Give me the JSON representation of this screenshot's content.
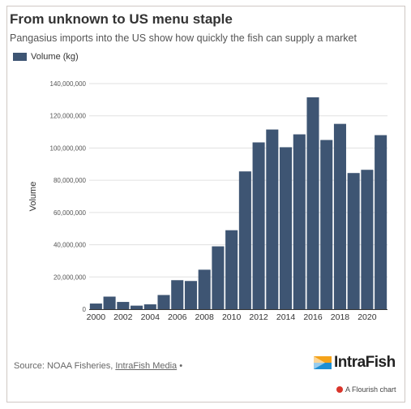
{
  "header": {
    "title": "From unknown to US menu staple",
    "subtitle": "Pangasius imports into the US show how quickly the fish can supply a market"
  },
  "legend": {
    "label": "Volume (kg)"
  },
  "colors": {
    "bar": "#3e5573",
    "grid": "#e0e0e0",
    "axis": "#333333",
    "logo_orange": "#f5a31a",
    "logo_blue": "#1e8fd4"
  },
  "chart_data": {
    "type": "bar",
    "categories": [
      "2000",
      "2001",
      "2002",
      "2003",
      "2004",
      "2005",
      "2006",
      "2007",
      "2008",
      "2009",
      "2010",
      "2011",
      "2012",
      "2013",
      "2014",
      "2015",
      "2016",
      "2017",
      "2018",
      "2019",
      "2020",
      "2021"
    ],
    "series": [
      {
        "name": "Volume (kg)",
        "values": [
          3500000,
          7800000,
          4500000,
          2200000,
          3000000,
          8800000,
          18000000,
          17500000,
          24500000,
          39000000,
          49000000,
          85500000,
          103500000,
          111500000,
          100500000,
          108500000,
          131500000,
          105000000,
          115000000,
          84500000,
          86500000,
          108000000
        ]
      }
    ],
    "xlabel": "",
    "ylabel": "Volume",
    "ylim": [
      0,
      140000000
    ],
    "yticks": [
      "0",
      "20,000,000",
      "40,000,000",
      "60,000,000",
      "80,000,000",
      "100,000,000",
      "120,000,000",
      "140,000,000"
    ],
    "xtick_labels": [
      "2000",
      "2002",
      "2004",
      "2006",
      "2008",
      "2010",
      "2012",
      "2014",
      "2016",
      "2018",
      "2020"
    ],
    "grid": true,
    "legend_position": "top-left"
  },
  "footer": {
    "source_prefix": "Source: NOAA Fisheries,",
    "source_link": "IntraFish Media",
    "source_suffix": "•",
    "logo_text": "IntraFish",
    "credit": "A Flourish chart"
  }
}
